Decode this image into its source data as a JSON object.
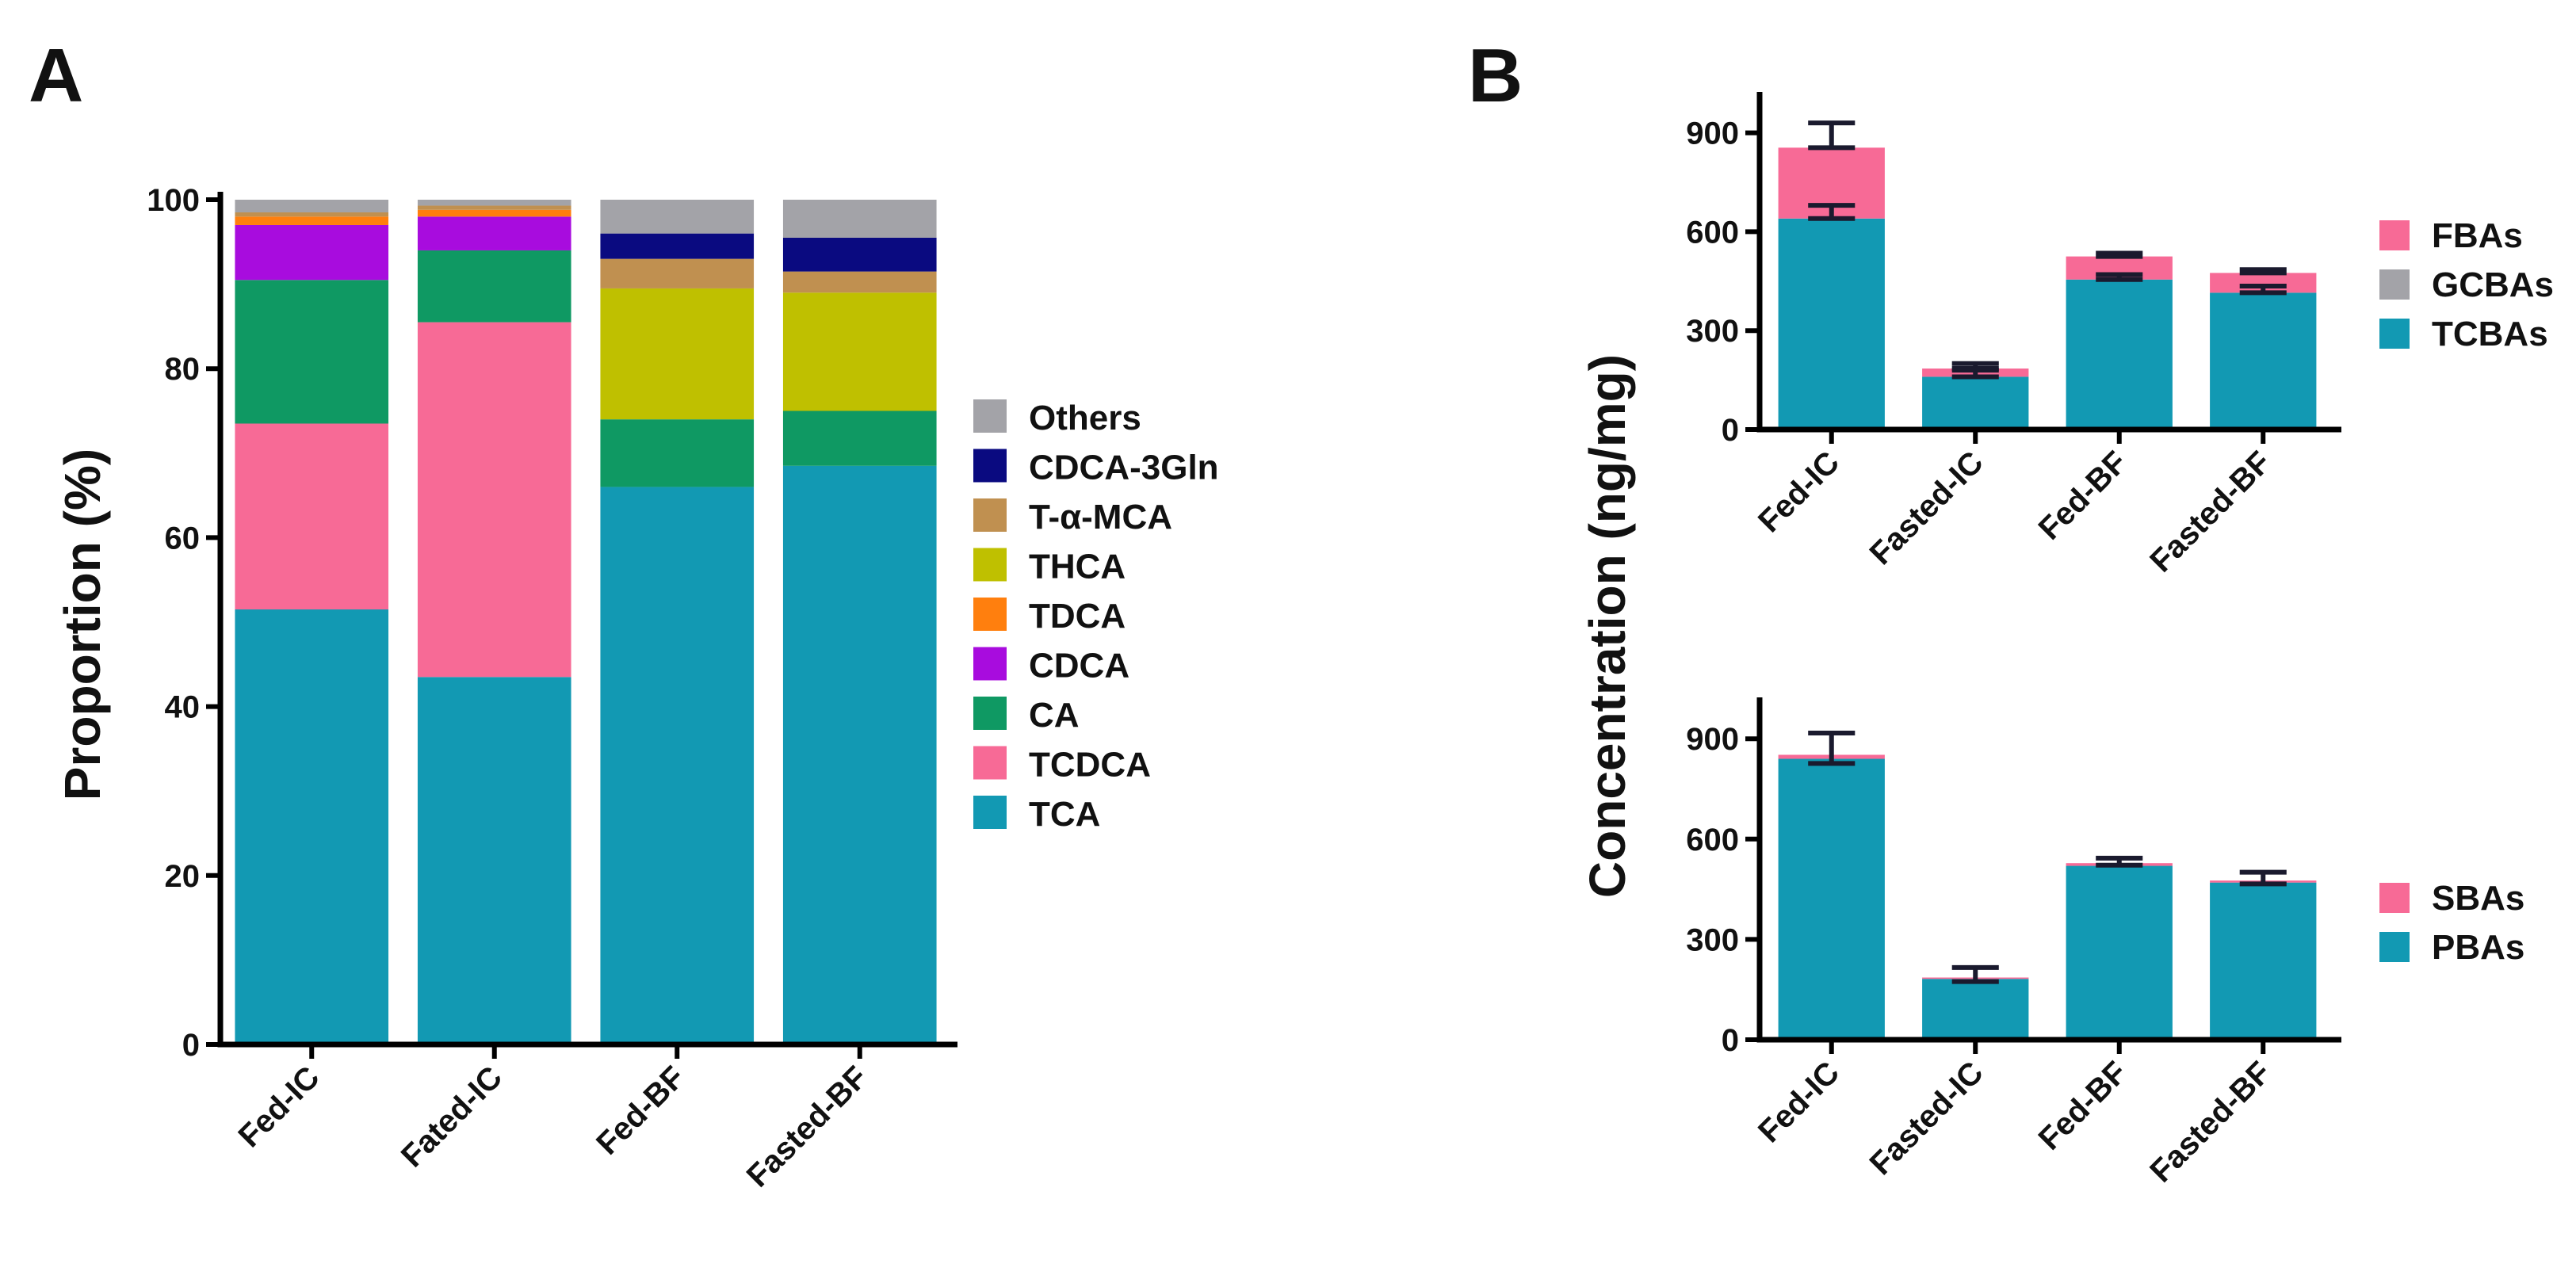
{
  "chart_data": [
    {
      "id": "A",
      "type": "bar",
      "stacked": true,
      "panel_label": "A",
      "title": "",
      "xlabel": "",
      "ylabel": "Proportion (%)",
      "ylim": [
        0,
        100
      ],
      "yticks": [
        0,
        20,
        40,
        60,
        80,
        100
      ],
      "legend_position": "right",
      "categories": [
        "Fed-IC",
        "Fated-IC",
        "Fed-BF",
        "Fasted-BF"
      ],
      "series": [
        {
          "name": "TCA",
          "color": "#1299b3",
          "values": [
            51.5,
            43.5,
            66.0,
            68.5
          ]
        },
        {
          "name": "TCDCA",
          "color": "#f76a96",
          "values": [
            22.0,
            42.0,
            0,
            0
          ]
        },
        {
          "name": "CA",
          "color": "#0f9963",
          "values": [
            17.0,
            8.5,
            8.0,
            6.5
          ]
        },
        {
          "name": "CDCA",
          "color": "#a80cde",
          "values": [
            6.5,
            4.0,
            0,
            0
          ]
        },
        {
          "name": "TDCA",
          "color": "#ff7f0e",
          "values": [
            1.0,
            0.8,
            0,
            0
          ]
        },
        {
          "name": "THCA",
          "color": "#bfc000",
          "values": [
            0,
            0,
            15.5,
            14.0
          ]
        },
        {
          "name": "T-α-MCA",
          "color": "#c09050",
          "values": [
            0.5,
            0.5,
            3.5,
            2.5
          ]
        },
        {
          "name": "CDCA-3Gln",
          "color": "#0a0a80",
          "values": [
            0,
            0,
            3.0,
            4.0
          ]
        },
        {
          "name": "Others",
          "color": "#a3a3a8",
          "values": [
            1.5,
            0.7,
            4.0,
            4.5
          ]
        }
      ],
      "legend_order": [
        "Others",
        "CDCA-3Gln",
        "T-α-MCA",
        "THCA",
        "TDCA",
        "CDCA",
        "CA",
        "TCDCA",
        "TCA"
      ]
    },
    {
      "id": "B-top",
      "type": "bar",
      "stacked": true,
      "panel_label": "B",
      "title": "",
      "xlabel": "",
      "ylabel": "Concentration (ng/mg)",
      "ylim": [
        0,
        1000
      ],
      "yticks": [
        0,
        300,
        600,
        900
      ],
      "legend_position": "right",
      "categories": [
        "Fed-IC",
        "Fasted-IC",
        "Fed-BF",
        "Fasted-BF"
      ],
      "series": [
        {
          "name": "TCBAs",
          "color": "#1299b3",
          "values": [
            640,
            160,
            455,
            415
          ],
          "errors": [
            40,
            20,
            15,
            20
          ]
        },
        {
          "name": "GCBAs",
          "color": "#a3a3a8",
          "values": [
            0,
            0,
            0,
            0
          ],
          "errors": [
            0,
            0,
            0,
            0
          ]
        },
        {
          "name": "FBAs",
          "color": "#f76a96",
          "values": [
            215,
            25,
            70,
            60
          ],
          "errors": [
            75,
            15,
            10,
            10
          ]
        }
      ],
      "legend_order": [
        "FBAs",
        "GCBAs",
        "TCBAs"
      ]
    },
    {
      "id": "B-bottom",
      "type": "bar",
      "stacked": true,
      "title": "",
      "xlabel": "",
      "ylabel": "Concentration (ng/mg)",
      "ylim": [
        0,
        1000
      ],
      "yticks": [
        0,
        300,
        600,
        900
      ],
      "legend_position": "right",
      "categories": [
        "Fed-IC",
        "Fasted-IC",
        "Fed-BF",
        "Fasted-BF"
      ],
      "series": [
        {
          "name": "PBAs",
          "color": "#1299b3",
          "values": [
            840,
            182,
            520,
            470
          ]
        },
        {
          "name": "SBAs",
          "color": "#f76a96",
          "values": [
            12,
            4,
            8,
            6
          ]
        }
      ],
      "total_errors": [
        65,
        30,
        15,
        25
      ],
      "legend_order": [
        "SBAs",
        "PBAs"
      ]
    }
  ]
}
